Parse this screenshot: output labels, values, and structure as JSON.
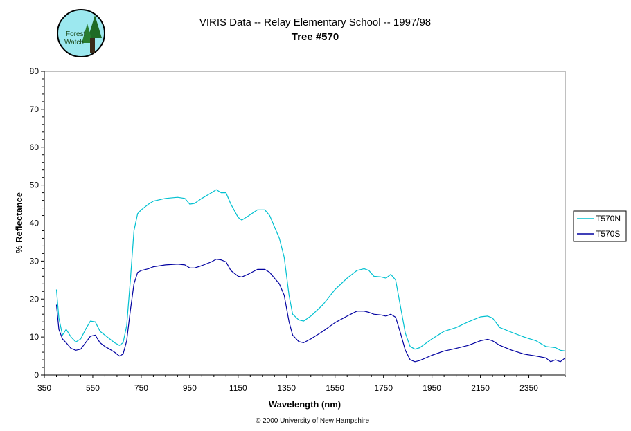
{
  "logo": {
    "text_line1": "Forest",
    "text_line2": "Watch",
    "icon": "forest-watch-logo"
  },
  "chart_data": {
    "type": "line",
    "title": "VIRIS Data -- Relay Elementary School -- 1997/98",
    "subtitle": "Tree #570",
    "xlabel": "Wavelength (nm)",
    "ylabel": "% Reflectance",
    "xlim": [
      350,
      2500
    ],
    "ylim": [
      0,
      80
    ],
    "xticks": [
      350,
      550,
      750,
      950,
      1150,
      1350,
      1550,
      1750,
      1950,
      2150,
      2350
    ],
    "yticks": [
      0,
      10,
      20,
      30,
      40,
      50,
      60,
      70,
      80
    ],
    "grid": false,
    "legend": "right",
    "footer": "© 2000 University of New Hampshire",
    "series": [
      {
        "name": "T570N",
        "color": "#00c0d0",
        "points": [
          [
            400,
            22.5
          ],
          [
            410,
            15
          ],
          [
            425,
            10.5
          ],
          [
            440,
            12
          ],
          [
            460,
            10
          ],
          [
            480,
            8.7
          ],
          [
            500,
            9.5
          ],
          [
            520,
            12
          ],
          [
            540,
            14.2
          ],
          [
            560,
            14
          ],
          [
            580,
            11.5
          ],
          [
            600,
            10.5
          ],
          [
            620,
            9.5
          ],
          [
            640,
            8.5
          ],
          [
            660,
            7.8
          ],
          [
            675,
            8.5
          ],
          [
            690,
            13
          ],
          [
            705,
            25
          ],
          [
            720,
            38
          ],
          [
            735,
            42.5
          ],
          [
            750,
            43.5
          ],
          [
            780,
            45
          ],
          [
            800,
            45.8
          ],
          [
            850,
            46.5
          ],
          [
            900,
            46.8
          ],
          [
            930,
            46.5
          ],
          [
            950,
            45
          ],
          [
            970,
            45.2
          ],
          [
            1000,
            46.5
          ],
          [
            1040,
            48
          ],
          [
            1060,
            48.8
          ],
          [
            1080,
            48
          ],
          [
            1100,
            48
          ],
          [
            1120,
            45
          ],
          [
            1150,
            41.5
          ],
          [
            1165,
            40.8
          ],
          [
            1190,
            41.8
          ],
          [
            1230,
            43.5
          ],
          [
            1260,
            43.5
          ],
          [
            1280,
            42
          ],
          [
            1300,
            39
          ],
          [
            1320,
            36
          ],
          [
            1340,
            31
          ],
          [
            1360,
            21
          ],
          [
            1375,
            16
          ],
          [
            1400,
            14.5
          ],
          [
            1420,
            14.2
          ],
          [
            1450,
            15.5
          ],
          [
            1500,
            18.5
          ],
          [
            1550,
            22.5
          ],
          [
            1600,
            25.5
          ],
          [
            1640,
            27.5
          ],
          [
            1670,
            28
          ],
          [
            1690,
            27.5
          ],
          [
            1710,
            26
          ],
          [
            1740,
            25.8
          ],
          [
            1760,
            25.5
          ],
          [
            1780,
            26.5
          ],
          [
            1800,
            25
          ],
          [
            1820,
            18
          ],
          [
            1840,
            11
          ],
          [
            1860,
            7.5
          ],
          [
            1880,
            6.8
          ],
          [
            1900,
            7.2
          ],
          [
            1950,
            9.5
          ],
          [
            2000,
            11.5
          ],
          [
            2050,
            12.5
          ],
          [
            2100,
            14
          ],
          [
            2150,
            15.3
          ],
          [
            2180,
            15.5
          ],
          [
            2200,
            15
          ],
          [
            2230,
            12.5
          ],
          [
            2280,
            11.2
          ],
          [
            2330,
            10
          ],
          [
            2380,
            9
          ],
          [
            2420,
            7.5
          ],
          [
            2460,
            7.2
          ],
          [
            2480,
            6.5
          ],
          [
            2500,
            6.3
          ]
        ]
      },
      {
        "name": "T570S",
        "color": "#0000a0",
        "points": [
          [
            400,
            18.5
          ],
          [
            410,
            12
          ],
          [
            425,
            9.5
          ],
          [
            440,
            8.5
          ],
          [
            460,
            7
          ],
          [
            480,
            6.5
          ],
          [
            500,
            6.8
          ],
          [
            520,
            8.5
          ],
          [
            540,
            10.2
          ],
          [
            560,
            10.5
          ],
          [
            580,
            8.5
          ],
          [
            600,
            7.5
          ],
          [
            620,
            6.8
          ],
          [
            640,
            6
          ],
          [
            660,
            5
          ],
          [
            675,
            5.5
          ],
          [
            690,
            9
          ],
          [
            705,
            17
          ],
          [
            720,
            24
          ],
          [
            735,
            27
          ],
          [
            750,
            27.5
          ],
          [
            780,
            28
          ],
          [
            800,
            28.5
          ],
          [
            850,
            29
          ],
          [
            900,
            29.2
          ],
          [
            930,
            29
          ],
          [
            950,
            28.2
          ],
          [
            970,
            28.2
          ],
          [
            1000,
            28.8
          ],
          [
            1040,
            29.8
          ],
          [
            1060,
            30.5
          ],
          [
            1080,
            30.3
          ],
          [
            1100,
            29.8
          ],
          [
            1120,
            27.5
          ],
          [
            1150,
            26
          ],
          [
            1165,
            25.8
          ],
          [
            1190,
            26.5
          ],
          [
            1230,
            27.8
          ],
          [
            1260,
            27.8
          ],
          [
            1280,
            27
          ],
          [
            1300,
            25.5
          ],
          [
            1320,
            24
          ],
          [
            1340,
            21
          ],
          [
            1360,
            14
          ],
          [
            1375,
            10.5
          ],
          [
            1400,
            8.8
          ],
          [
            1420,
            8.5
          ],
          [
            1450,
            9.5
          ],
          [
            1500,
            11.5
          ],
          [
            1550,
            13.8
          ],
          [
            1600,
            15.5
          ],
          [
            1640,
            16.8
          ],
          [
            1670,
            16.8
          ],
          [
            1690,
            16.5
          ],
          [
            1710,
            16
          ],
          [
            1740,
            15.8
          ],
          [
            1760,
            15.5
          ],
          [
            1780,
            16
          ],
          [
            1800,
            15.2
          ],
          [
            1820,
            11
          ],
          [
            1840,
            6.5
          ],
          [
            1860,
            4
          ],
          [
            1880,
            3.5
          ],
          [
            1900,
            3.8
          ],
          [
            1950,
            5.2
          ],
          [
            2000,
            6.3
          ],
          [
            2050,
            7
          ],
          [
            2100,
            7.8
          ],
          [
            2150,
            9
          ],
          [
            2180,
            9.4
          ],
          [
            2200,
            9
          ],
          [
            2230,
            7.8
          ],
          [
            2280,
            6.5
          ],
          [
            2330,
            5.5
          ],
          [
            2380,
            5
          ],
          [
            2420,
            4.5
          ],
          [
            2440,
            3.5
          ],
          [
            2460,
            4
          ],
          [
            2480,
            3.5
          ],
          [
            2500,
            4.5
          ]
        ]
      }
    ]
  }
}
